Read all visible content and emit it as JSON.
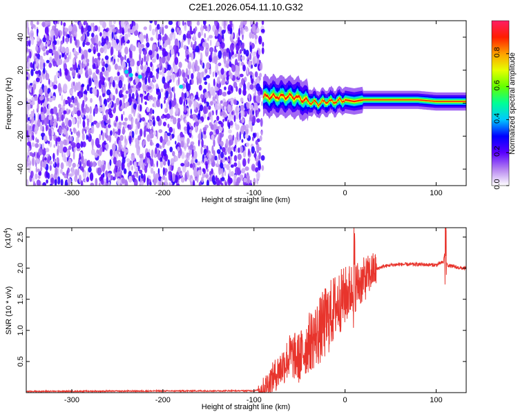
{
  "title": "C2E1.2026.054.11.10.G32",
  "chart_data": [
    {
      "type": "heatmap",
      "name": "spectrogram",
      "xlabel": "Height of straight line (km)",
      "ylabel": "Frequency (Hz)",
      "xlim": [
        -350,
        133
      ],
      "ylim": [
        -50,
        50
      ],
      "xticks": [
        -300,
        -200,
        -100,
        0,
        100
      ],
      "yticks": [
        -40,
        -20,
        0,
        20,
        40
      ],
      "noise_region_x": [
        -350,
        -90
      ],
      "signal_track": {
        "x": [
          -90,
          -80,
          -60,
          -50,
          -40,
          -30,
          -20,
          -10,
          0,
          10,
          20,
          40,
          60,
          80,
          100,
          120,
          133
        ],
        "freq_hz": [
          4,
          4,
          4,
          3,
          1,
          0,
          1,
          1,
          2,
          1,
          2,
          2,
          2,
          2,
          1,
          1,
          1
        ]
      },
      "colorbar": {
        "label": "Normalized spectral amplitude",
        "ticks": [
          "0.0",
          "0.2",
          "0.4",
          "0.6",
          "0.8"
        ],
        "range": [
          0,
          1
        ]
      }
    },
    {
      "type": "line",
      "name": "snr",
      "xlabel": "Height of straight line (km)",
      "ylabel": "SNR (10 * v/v)",
      "yunit": "(x10",
      "yunit_exp": "4",
      "yunit_close": ")",
      "xlim": [
        -350,
        133
      ],
      "ylim": [
        0,
        2.65
      ],
      "xticks": [
        -300,
        -200,
        -100,
        0,
        100
      ],
      "yticks": [
        "0.5",
        "1.0",
        "1.5",
        "2.0",
        "2.5"
      ],
      "ytick_values": [
        0.5,
        1.0,
        1.5,
        2.0,
        2.5
      ],
      "x": [
        -350,
        -100,
        -90,
        -70,
        -60,
        -50,
        -40,
        -30,
        -20,
        -10,
        0,
        10,
        20,
        30,
        40,
        50,
        60,
        80,
        100,
        108,
        110,
        112,
        120,
        133
      ],
      "y": [
        0.02,
        0.03,
        0.05,
        0.4,
        0.6,
        0.55,
        0.8,
        0.95,
        1.15,
        1.4,
        1.55,
        1.7,
        1.8,
        1.95,
        2.02,
        2.05,
        2.06,
        2.06,
        2.05,
        2.1,
        2.3,
        2.05,
        2.02,
        1.99
      ],
      "color": "#e8342c"
    }
  ]
}
